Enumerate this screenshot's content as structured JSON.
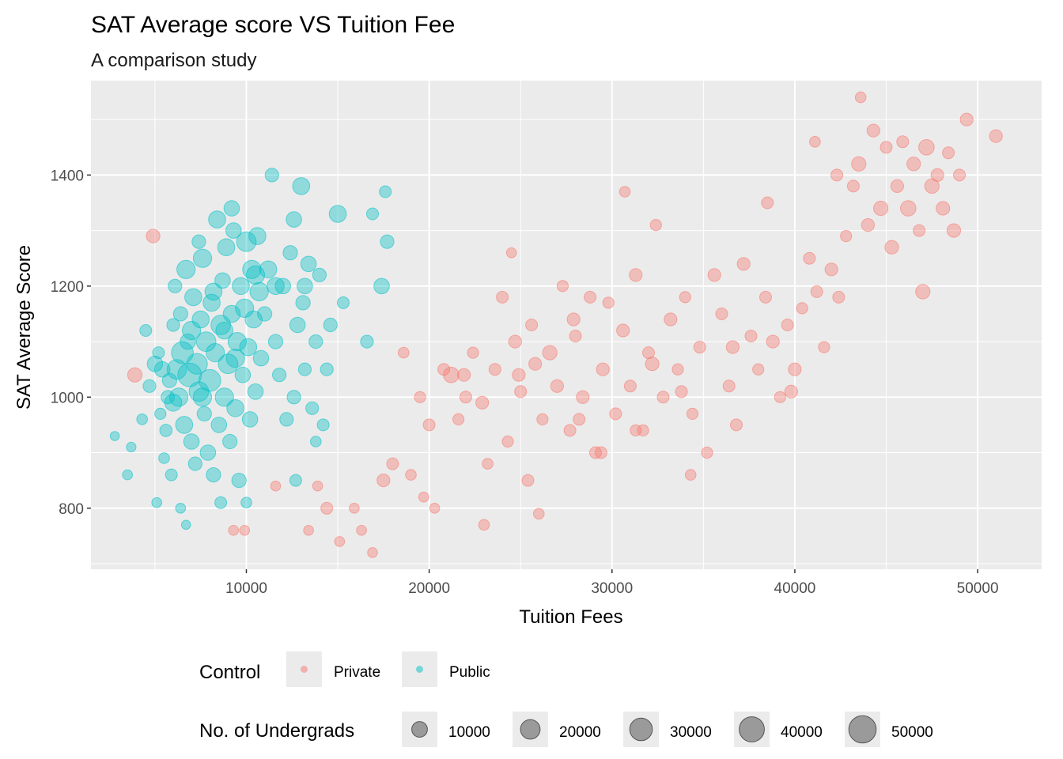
{
  "chart_data": {
    "type": "scatter",
    "title": "SAT Average score VS Tuition Fee",
    "subtitle": "A comparison study",
    "xlabel": "Tuition Fees",
    "ylabel": "SAT Average Score",
    "xlim": [
      1500,
      53500
    ],
    "ylim": [
      690,
      1570
    ],
    "x_ticks": [
      10000,
      20000,
      30000,
      40000,
      50000
    ],
    "y_ticks": [
      800,
      1000,
      1200,
      1400
    ],
    "grid": true,
    "legend_position": "bottom",
    "colors": {
      "Private": "#F8766D",
      "Public": "#00BFC4",
      "size_key": "#7f7f7f",
      "panel": "#EBEBEB",
      "grid": "#FFFFFF"
    },
    "color_legend": {
      "title": "Control",
      "entries": [
        "Private",
        "Public"
      ]
    },
    "size_legend": {
      "title": "No. of Undergrads",
      "entries": [
        10000,
        20000,
        30000,
        40000,
        50000
      ]
    },
    "series": [
      {
        "name": "Public",
        "points": [
          [
            2800,
            930,
            2000
          ],
          [
            3500,
            860,
            3000
          ],
          [
            3700,
            910,
            2500
          ],
          [
            4300,
            960,
            4000
          ],
          [
            4500,
            1120,
            6000
          ],
          [
            4700,
            1020,
            8000
          ],
          [
            5000,
            1060,
            15000
          ],
          [
            5200,
            1080,
            6000
          ],
          [
            5300,
            970,
            5000
          ],
          [
            5500,
            890,
            4000
          ],
          [
            5600,
            940,
            7000
          ],
          [
            5700,
            1000,
            9000
          ],
          [
            5800,
            1030,
            12000
          ],
          [
            5900,
            860,
            6000
          ],
          [
            6000,
            1130,
            8000
          ],
          [
            6100,
            1200,
            10000
          ],
          [
            6200,
            1050,
            30000
          ],
          [
            6300,
            1000,
            25000
          ],
          [
            6400,
            1150,
            12000
          ],
          [
            6500,
            1080,
            40000
          ],
          [
            6600,
            950,
            20000
          ],
          [
            6700,
            1230,
            25000
          ],
          [
            6800,
            1100,
            15000
          ],
          [
            6900,
            1040,
            50000
          ],
          [
            7000,
            920,
            15000
          ],
          [
            7100,
            1180,
            20000
          ],
          [
            7200,
            880,
            10000
          ],
          [
            7300,
            1060,
            35000
          ],
          [
            7400,
            1010,
            30000
          ],
          [
            7500,
            1140,
            20000
          ],
          [
            7600,
            1250,
            25000
          ],
          [
            7700,
            970,
            12000
          ],
          [
            7800,
            1100,
            30000
          ],
          [
            7900,
            900,
            15000
          ],
          [
            8000,
            1030,
            40000
          ],
          [
            8100,
            1170,
            20000
          ],
          [
            8200,
            860,
            12000
          ],
          [
            8300,
            1080,
            25000
          ],
          [
            8400,
            1320,
            20000
          ],
          [
            8500,
            950,
            15000
          ],
          [
            8600,
            1130,
            30000
          ],
          [
            8700,
            1210,
            15000
          ],
          [
            8800,
            1000,
            25000
          ],
          [
            8900,
            1270,
            20000
          ],
          [
            9000,
            1060,
            30000
          ],
          [
            9100,
            920,
            12000
          ],
          [
            9200,
            1150,
            20000
          ],
          [
            9300,
            1300,
            15000
          ],
          [
            9400,
            980,
            20000
          ],
          [
            9500,
            1100,
            25000
          ],
          [
            9600,
            850,
            12000
          ],
          [
            9700,
            1200,
            20000
          ],
          [
            9800,
            1040,
            15000
          ],
          [
            9900,
            1160,
            25000
          ],
          [
            10000,
            1280,
            30000
          ],
          [
            10100,
            1090,
            20000
          ],
          [
            10200,
            960,
            15000
          ],
          [
            10300,
            1230,
            25000
          ],
          [
            10400,
            1140,
            20000
          ],
          [
            10500,
            1010,
            15000
          ],
          [
            10600,
            1290,
            20000
          ],
          [
            10700,
            1190,
            25000
          ],
          [
            10800,
            1070,
            15000
          ],
          [
            11000,
            1150,
            12000
          ],
          [
            11200,
            1230,
            20000
          ],
          [
            11400,
            1400,
            10000
          ],
          [
            11600,
            1100,
            12000
          ],
          [
            11800,
            1040,
            10000
          ],
          [
            12000,
            1200,
            15000
          ],
          [
            12200,
            960,
            10000
          ],
          [
            12400,
            1260,
            12000
          ],
          [
            12600,
            1000,
            10000
          ],
          [
            12800,
            1130,
            15000
          ],
          [
            13000,
            1380,
            20000
          ],
          [
            13100,
            1170,
            12000
          ],
          [
            13200,
            1050,
            8000
          ],
          [
            13400,
            1240,
            15000
          ],
          [
            13600,
            980,
            8000
          ],
          [
            13800,
            1100,
            10000
          ],
          [
            14000,
            1220,
            10000
          ],
          [
            14200,
            950,
            6000
          ],
          [
            14400,
            1050,
            8000
          ],
          [
            14600,
            1130,
            10000
          ],
          [
            15000,
            1330,
            20000
          ],
          [
            15300,
            1170,
            6000
          ],
          [
            16600,
            1100,
            8000
          ],
          [
            16900,
            1330,
            6000
          ],
          [
            17400,
            1200,
            15000
          ],
          [
            17600,
            1370,
            6000
          ],
          [
            17700,
            1280,
            10000
          ],
          [
            5100,
            810,
            3000
          ],
          [
            6400,
            800,
            3000
          ],
          [
            6700,
            770,
            2000
          ],
          [
            8600,
            810,
            6000
          ],
          [
            10000,
            810,
            4000
          ],
          [
            12700,
            850,
            6000
          ],
          [
            13800,
            920,
            4000
          ],
          [
            7400,
            1280,
            10000
          ],
          [
            9200,
            1340,
            15000
          ],
          [
            10500,
            1220,
            25000
          ],
          [
            11600,
            1200,
            20000
          ],
          [
            12600,
            1320,
            15000
          ],
          [
            13200,
            1200,
            15000
          ],
          [
            7000,
            1120,
            25000
          ],
          [
            8200,
            1190,
            20000
          ],
          [
            9400,
            1070,
            25000
          ],
          [
            6000,
            990,
            20000
          ],
          [
            5400,
            1050,
            15000
          ],
          [
            7600,
            1000,
            25000
          ],
          [
            8800,
            1120,
            20000
          ]
        ]
      },
      {
        "name": "Private",
        "points": [
          [
            3900,
            1040,
            12000
          ],
          [
            4900,
            1290,
            10000
          ],
          [
            9300,
            760,
            3000
          ],
          [
            9900,
            760,
            3000
          ],
          [
            11600,
            840,
            3000
          ],
          [
            13400,
            760,
            3000
          ],
          [
            13900,
            840,
            3000
          ],
          [
            14400,
            800,
            6000
          ],
          [
            15100,
            740,
            3000
          ],
          [
            15900,
            800,
            3000
          ],
          [
            16300,
            760,
            3000
          ],
          [
            16900,
            720,
            3000
          ],
          [
            17500,
            850,
            8000
          ],
          [
            18000,
            880,
            6000
          ],
          [
            18600,
            1080,
            4000
          ],
          [
            19000,
            860,
            4000
          ],
          [
            19500,
            1000,
            5000
          ],
          [
            20000,
            950,
            6000
          ],
          [
            20300,
            800,
            3000
          ],
          [
            20800,
            1050,
            6000
          ],
          [
            21200,
            1040,
            15000
          ],
          [
            21600,
            960,
            5000
          ],
          [
            22000,
            1000,
            6000
          ],
          [
            22400,
            1080,
            5000
          ],
          [
            22900,
            990,
            8000
          ],
          [
            23200,
            880,
            4000
          ],
          [
            23600,
            1050,
            6000
          ],
          [
            24000,
            1180,
            6000
          ],
          [
            24300,
            920,
            5000
          ],
          [
            24700,
            1100,
            8000
          ],
          [
            25000,
            1010,
            6000
          ],
          [
            25400,
            850,
            6000
          ],
          [
            25800,
            1060,
            8000
          ],
          [
            26200,
            960,
            5000
          ],
          [
            26600,
            1080,
            12000
          ],
          [
            27000,
            1020,
            8000
          ],
          [
            27300,
            1200,
            5000
          ],
          [
            27700,
            940,
            6000
          ],
          [
            28000,
            1110,
            6000
          ],
          [
            28400,
            1000,
            8000
          ],
          [
            28800,
            1180,
            6000
          ],
          [
            29100,
            900,
            6000
          ],
          [
            29500,
            1050,
            8000
          ],
          [
            29800,
            1170,
            5000
          ],
          [
            30200,
            970,
            6000
          ],
          [
            30600,
            1120,
            8000
          ],
          [
            31000,
            1020,
            6000
          ],
          [
            31300,
            1220,
            8000
          ],
          [
            31700,
            940,
            5000
          ],
          [
            32000,
            1080,
            6000
          ],
          [
            32400,
            1310,
            5000
          ],
          [
            32800,
            1000,
            6000
          ],
          [
            33200,
            1140,
            8000
          ],
          [
            33600,
            1050,
            5000
          ],
          [
            34000,
            1180,
            5000
          ],
          [
            34400,
            970,
            5000
          ],
          [
            34800,
            1090,
            6000
          ],
          [
            35200,
            900,
            5000
          ],
          [
            35600,
            1220,
            8000
          ],
          [
            36000,
            1150,
            6000
          ],
          [
            36400,
            1020,
            6000
          ],
          [
            36800,
            950,
            6000
          ],
          [
            37200,
            1240,
            8000
          ],
          [
            37600,
            1110,
            6000
          ],
          [
            38000,
            1050,
            5000
          ],
          [
            38400,
            1180,
            6000
          ],
          [
            38800,
            1100,
            8000
          ],
          [
            39200,
            1000,
            5000
          ],
          [
            39600,
            1130,
            6000
          ],
          [
            40000,
            1050,
            8000
          ],
          [
            40400,
            1160,
            5000
          ],
          [
            40800,
            1250,
            6000
          ],
          [
            41200,
            1190,
            6000
          ],
          [
            41600,
            1090,
            5000
          ],
          [
            42000,
            1230,
            8000
          ],
          [
            42400,
            1180,
            6000
          ],
          [
            42800,
            1290,
            5000
          ],
          [
            43200,
            1380,
            6000
          ],
          [
            43500,
            1420,
            12000
          ],
          [
            43600,
            1540,
            4000
          ],
          [
            44000,
            1310,
            8000
          ],
          [
            44300,
            1480,
            8000
          ],
          [
            44700,
            1340,
            12000
          ],
          [
            45000,
            1450,
            6000
          ],
          [
            45300,
            1270,
            10000
          ],
          [
            45600,
            1380,
            8000
          ],
          [
            45900,
            1460,
            6000
          ],
          [
            46200,
            1340,
            15000
          ],
          [
            46500,
            1420,
            10000
          ],
          [
            46800,
            1300,
            6000
          ],
          [
            47000,
            1190,
            12000
          ],
          [
            47200,
            1450,
            15000
          ],
          [
            47500,
            1380,
            12000
          ],
          [
            47800,
            1400,
            8000
          ],
          [
            48100,
            1340,
            10000
          ],
          [
            48400,
            1440,
            6000
          ],
          [
            48700,
            1300,
            10000
          ],
          [
            49000,
            1400,
            6000
          ],
          [
            49400,
            1500,
            8000
          ],
          [
            51000,
            1470,
            8000
          ],
          [
            30700,
            1370,
            4000
          ],
          [
            38500,
            1350,
            6000
          ],
          [
            41100,
            1460,
            4000
          ],
          [
            42300,
            1400,
            6000
          ],
          [
            34300,
            860,
            4000
          ],
          [
            29400,
            900,
            6000
          ],
          [
            26000,
            790,
            4000
          ],
          [
            23000,
            770,
            4000
          ],
          [
            19700,
            820,
            3000
          ],
          [
            24500,
            1260,
            3000
          ],
          [
            27900,
            1140,
            8000
          ],
          [
            32200,
            1060,
            10000
          ],
          [
            36600,
            1090,
            8000
          ],
          [
            25600,
            1130,
            6000
          ],
          [
            21900,
            1040,
            8000
          ],
          [
            33800,
            1010,
            6000
          ],
          [
            39800,
            1010,
            8000
          ],
          [
            31300,
            940,
            5000
          ],
          [
            28200,
            960,
            6000
          ],
          [
            24900,
            1040,
            8000
          ]
        ]
      }
    ]
  }
}
